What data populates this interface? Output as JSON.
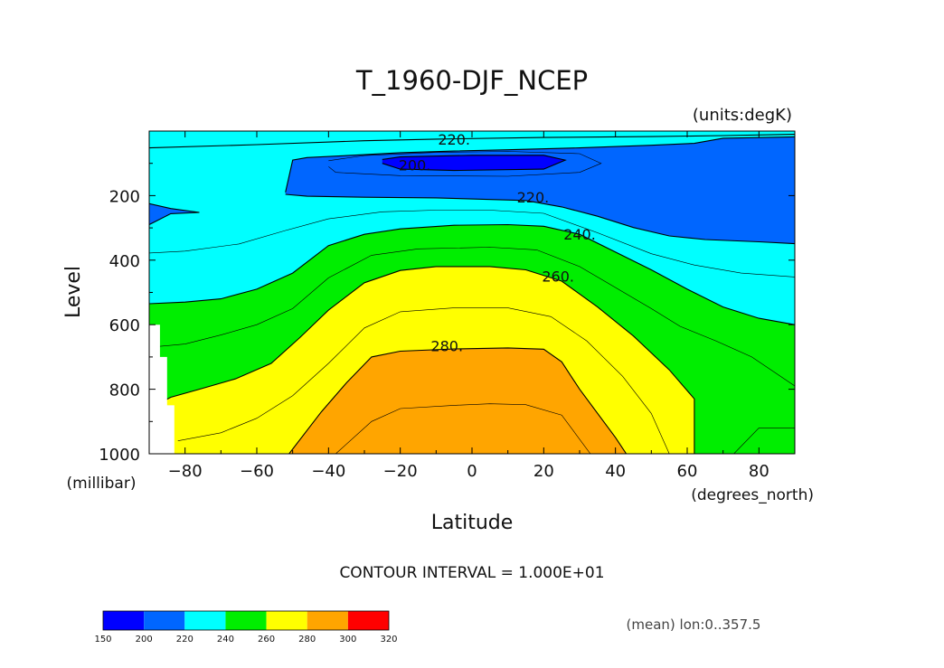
{
  "chart_data": {
    "type": "filled-contour",
    "title": "T_1960-DJF_NCEP",
    "units_label": "(units:degK)",
    "xlabel": "Latitude",
    "x_units": "(degrees_north)",
    "ylabel": "Level",
    "y_units": "(millibar)",
    "xlim": [
      -90,
      90
    ],
    "ylim": [
      1000,
      0
    ],
    "x_ticks": [
      -80,
      -60,
      -40,
      -20,
      0,
      20,
      40,
      60,
      80
    ],
    "x_tick_labels": [
      "−80",
      "−60",
      "−40",
      "−20",
      "0",
      "20",
      "40",
      "60",
      "80"
    ],
    "y_ticks": [
      200,
      400,
      600,
      800,
      1000
    ],
    "y_tick_labels": [
      "200",
      "400",
      "600",
      "800",
      "1000"
    ],
    "contour_interval_text": "CONTOUR INTERVAL = 1.000E+01",
    "mean_text": "(mean) lon:0..357.5",
    "contour_labels": [
      {
        "text": "220.",
        "lat": -5,
        "level": 25
      },
      {
        "text": "200.",
        "lat": -16,
        "level": 105
      },
      {
        "text": "220.",
        "lat": 17,
        "level": 205
      },
      {
        "text": "240.",
        "lat": 30,
        "level": 320
      },
      {
        "text": "260.",
        "lat": 24,
        "level": 450
      },
      {
        "text": "280.",
        "lat": -7,
        "level": 665
      }
    ],
    "colorbar": {
      "levels": [
        150,
        200,
        220,
        240,
        260,
        280,
        300,
        320
      ],
      "level_labels": [
        "150",
        "200",
        "220",
        "240",
        "260",
        "280",
        "300",
        "320"
      ],
      "colors": [
        "#0000ff",
        "#0066ff",
        "#00ffff",
        "#00ee00",
        "#ffff00",
        "#ffa500",
        "#ff0000"
      ]
    },
    "filled_regions": [
      {
        "band": "220-240",
        "color": "#00ffff",
        "points": [
          [
            -90,
            0
          ],
          [
            90,
            0
          ],
          [
            90,
            1000
          ],
          [
            -90,
            1000
          ]
        ]
      },
      {
        "band": "200-220",
        "color": "#0066ff",
        "points": [
          [
            -90,
            225
          ],
          [
            -84,
            240
          ],
          [
            -76,
            252
          ],
          [
            -84,
            256
          ],
          [
            -90,
            290
          ]
        ]
      },
      {
        "band": "200-220",
        "color": "#0066ff",
        "points": [
          [
            -52,
            190
          ],
          [
            -50,
            90
          ],
          [
            -46,
            82
          ],
          [
            -30,
            73
          ],
          [
            -20,
            67
          ],
          [
            -5,
            62
          ],
          [
            10,
            58
          ],
          [
            30,
            52
          ],
          [
            50,
            44
          ],
          [
            62,
            38
          ],
          [
            70,
            22
          ],
          [
            90,
            18
          ],
          [
            90,
            349
          ],
          [
            80,
            343
          ],
          [
            65,
            336
          ],
          [
            55,
            325
          ],
          [
            45,
            299
          ],
          [
            35,
            264
          ],
          [
            25,
            235
          ],
          [
            15,
            215
          ],
          [
            -10,
            207
          ],
          [
            -30,
            205
          ],
          [
            -46,
            202
          ],
          [
            -52,
            196
          ]
        ]
      },
      {
        "band": "150-200",
        "color": "#0000ff",
        "points": [
          [
            -25,
            88
          ],
          [
            -20,
            80
          ],
          [
            0,
            75
          ],
          [
            20,
            75
          ],
          [
            26,
            90
          ],
          [
            20,
            118
          ],
          [
            -5,
            122
          ],
          [
            -20,
            118
          ],
          [
            -25,
            100
          ]
        ]
      },
      {
        "band": "240-260",
        "color": "#00ee00",
        "points": [
          [
            -90,
            535
          ],
          [
            -80,
            530
          ],
          [
            -70,
            520
          ],
          [
            -60,
            490
          ],
          [
            -50,
            440
          ],
          [
            -40,
            355
          ],
          [
            -30,
            320
          ],
          [
            -20,
            303
          ],
          [
            -5,
            292
          ],
          [
            10,
            290
          ],
          [
            20,
            295
          ],
          [
            30,
            320
          ],
          [
            40,
            375
          ],
          [
            50,
            430
          ],
          [
            60,
            490
          ],
          [
            70,
            545
          ],
          [
            80,
            580
          ],
          [
            90,
            600
          ],
          [
            90,
            1000
          ],
          [
            -90,
            1000
          ]
        ]
      },
      {
        "band": "260-280",
        "color": "#ffff00",
        "points": [
          [
            -90,
            860
          ],
          [
            -84,
            825
          ],
          [
            -76,
            800
          ],
          [
            -66,
            768
          ],
          [
            -56,
            720
          ],
          [
            -48,
            640
          ],
          [
            -40,
            555
          ],
          [
            -30,
            470
          ],
          [
            -20,
            432
          ],
          [
            -10,
            420
          ],
          [
            5,
            420
          ],
          [
            15,
            430
          ],
          [
            25,
            465
          ],
          [
            35,
            545
          ],
          [
            45,
            635
          ],
          [
            55,
            740
          ],
          [
            62,
            830
          ],
          [
            62,
            1000
          ],
          [
            -90,
            1000
          ]
        ]
      },
      {
        "band": "280-300",
        "color": "#ffa500",
        "points": [
          [
            -51,
            1000
          ],
          [
            -42,
            870
          ],
          [
            -35,
            780
          ],
          [
            -28,
            700
          ],
          [
            -20,
            682
          ],
          [
            -5,
            675
          ],
          [
            10,
            672
          ],
          [
            20,
            676
          ],
          [
            25,
            715
          ],
          [
            30,
            800
          ],
          [
            40,
            950
          ],
          [
            43,
            1000
          ]
        ]
      }
    ],
    "contour_lines": [
      {
        "value": 220,
        "points": [
          [
            -90,
            52
          ],
          [
            -60,
            42
          ],
          [
            -30,
            30
          ],
          [
            -10,
            25
          ],
          [
            20,
            20
          ],
          [
            50,
            17
          ],
          [
            70,
            14
          ],
          [
            90,
            10
          ]
        ]
      },
      {
        "value": 210,
        "points": [
          [
            -40,
            92
          ],
          [
            -30,
            76
          ],
          [
            -10,
            66
          ],
          [
            10,
            63
          ],
          [
            30,
            70
          ],
          [
            36,
            100
          ],
          [
            30,
            128
          ],
          [
            10,
            140
          ],
          [
            -20,
            138
          ],
          [
            -38,
            128
          ],
          [
            -40,
            110
          ]
        ]
      },
      {
        "value": 200,
        "points": [
          [
            -25,
            88
          ],
          [
            -20,
            80
          ],
          [
            0,
            75
          ],
          [
            20,
            75
          ],
          [
            26,
            90
          ],
          [
            20,
            118
          ],
          [
            -5,
            122
          ],
          [
            -20,
            118
          ],
          [
            -25,
            100
          ]
        ]
      },
      {
        "value": 220,
        "points": [
          [
            -52,
            190
          ],
          [
            -50,
            90
          ],
          [
            -46,
            82
          ],
          [
            -30,
            73
          ],
          [
            -20,
            67
          ],
          [
            -5,
            62
          ],
          [
            10,
            58
          ],
          [
            30,
            52
          ],
          [
            50,
            44
          ],
          [
            62,
            38
          ],
          [
            70,
            22
          ],
          [
            90,
            18
          ]
        ]
      },
      {
        "value": 220,
        "points": [
          [
            -52,
            196
          ],
          [
            -46,
            202
          ],
          [
            -30,
            205
          ],
          [
            -10,
            207
          ],
          [
            15,
            215
          ],
          [
            25,
            235
          ],
          [
            35,
            264
          ],
          [
            45,
            299
          ],
          [
            55,
            325
          ],
          [
            65,
            336
          ],
          [
            80,
            343
          ],
          [
            90,
            349
          ]
        ]
      },
      {
        "value": 220,
        "points": [
          [
            -90,
            225
          ],
          [
            -84,
            240
          ],
          [
            -76,
            252
          ],
          [
            -84,
            256
          ],
          [
            -90,
            290
          ]
        ]
      },
      {
        "value": 230,
        "points": [
          [
            -90,
            378
          ],
          [
            -80,
            372
          ],
          [
            -65,
            350
          ],
          [
            -52,
            308
          ],
          [
            -40,
            272
          ],
          [
            -25,
            250
          ],
          [
            -10,
            245
          ],
          [
            5,
            245
          ],
          [
            20,
            255
          ],
          [
            35,
            315
          ],
          [
            50,
            380
          ],
          [
            62,
            415
          ],
          [
            75,
            440
          ],
          [
            90,
            452
          ]
        ]
      },
      {
        "value": 240,
        "points": [
          [
            -90,
            535
          ],
          [
            -80,
            530
          ],
          [
            -70,
            520
          ],
          [
            -60,
            490
          ],
          [
            -50,
            440
          ],
          [
            -40,
            355
          ],
          [
            -30,
            320
          ],
          [
            -20,
            303
          ],
          [
            -5,
            292
          ],
          [
            10,
            290
          ],
          [
            20,
            295
          ],
          [
            30,
            320
          ],
          [
            40,
            375
          ],
          [
            50,
            430
          ],
          [
            60,
            490
          ],
          [
            70,
            545
          ],
          [
            80,
            580
          ],
          [
            90,
            600
          ]
        ]
      },
      {
        "value": 250,
        "points": [
          [
            -90,
            670
          ],
          [
            -80,
            660
          ],
          [
            -70,
            632
          ],
          [
            -60,
            600
          ],
          [
            -50,
            550
          ],
          [
            -40,
            455
          ],
          [
            -28,
            385
          ],
          [
            -15,
            365
          ],
          [
            5,
            360
          ],
          [
            18,
            368
          ],
          [
            30,
            420
          ],
          [
            40,
            485
          ],
          [
            50,
            550
          ],
          [
            58,
            605
          ],
          [
            68,
            650
          ],
          [
            78,
            700
          ],
          [
            86,
            760
          ],
          [
            90,
            790
          ]
        ]
      },
      {
        "value": 250,
        "points": [
          [
            73,
            1000
          ],
          [
            80,
            920
          ],
          [
            90,
            920
          ]
        ]
      },
      {
        "value": 260,
        "points": [
          [
            -90,
            860
          ],
          [
            -84,
            825
          ],
          [
            -76,
            800
          ],
          [
            -66,
            768
          ],
          [
            -56,
            720
          ],
          [
            -48,
            640
          ],
          [
            -40,
            555
          ],
          [
            -30,
            470
          ],
          [
            -20,
            432
          ],
          [
            -10,
            420
          ],
          [
            5,
            420
          ],
          [
            15,
            430
          ],
          [
            25,
            465
          ],
          [
            35,
            545
          ],
          [
            45,
            635
          ],
          [
            55,
            740
          ],
          [
            62,
            830
          ],
          [
            62,
            1000
          ]
        ]
      },
      {
        "value": 270,
        "points": [
          [
            -82,
            960
          ],
          [
            -70,
            935
          ],
          [
            -60,
            890
          ],
          [
            -50,
            820
          ],
          [
            -40,
            720
          ],
          [
            -30,
            610
          ],
          [
            -20,
            560
          ],
          [
            -5,
            548
          ],
          [
            10,
            548
          ],
          [
            22,
            575
          ],
          [
            32,
            650
          ],
          [
            42,
            760
          ],
          [
            50,
            875
          ],
          [
            55,
            1000
          ]
        ]
      },
      {
        "value": 280,
        "points": [
          [
            -51,
            1000
          ],
          [
            -42,
            870
          ],
          [
            -35,
            780
          ],
          [
            -28,
            700
          ],
          [
            -20,
            682
          ],
          [
            -5,
            675
          ],
          [
            10,
            672
          ],
          [
            20,
            676
          ],
          [
            25,
            715
          ],
          [
            30,
            800
          ],
          [
            40,
            950
          ],
          [
            43,
            1000
          ]
        ]
      },
      {
        "value": 290,
        "points": [
          [
            -38,
            1000
          ],
          [
            -28,
            900
          ],
          [
            -20,
            860
          ],
          [
            -5,
            850
          ],
          [
            5,
            845
          ],
          [
            15,
            848
          ],
          [
            25,
            880
          ],
          [
            33,
            1000
          ]
        ]
      }
    ],
    "masked_regions": [
      {
        "points": [
          [
            -90,
            600
          ],
          [
            -87,
            600
          ],
          [
            -87,
            700
          ],
          [
            -85,
            700
          ],
          [
            -85,
            850
          ],
          [
            -83,
            850
          ],
          [
            -83,
            1000
          ],
          [
            -90,
            1000
          ]
        ]
      }
    ]
  }
}
